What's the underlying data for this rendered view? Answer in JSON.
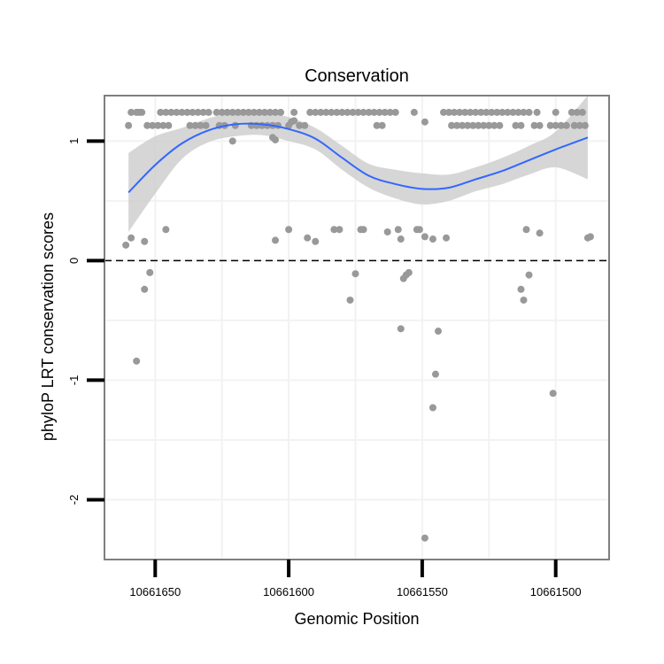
{
  "chart_data": {
    "type": "scatter",
    "title": "Conservation",
    "xlabel": "Genomic Position",
    "ylabel": "phyloP LRT conservation scores",
    "x_reversed": true,
    "xlim": [
      10661669,
      10661480
    ],
    "ylim": [
      -2.5,
      1.38
    ],
    "x_ticks": [
      10661650,
      10661600,
      10661550,
      10661500
    ],
    "x_tick_labels": [
      "10661650",
      "10661600",
      "10661550",
      "10661500"
    ],
    "y_ticks": [
      -2,
      -1,
      0,
      1
    ],
    "y_tick_labels": [
      "-2",
      "-1",
      "0",
      "1"
    ],
    "reference_line": {
      "y": 0,
      "style": "dashed"
    },
    "grid": true,
    "colors": {
      "points": "#999999",
      "smooth_line": "#3366FF",
      "ribbon": "#CCCCCC",
      "panel_border": "#7F7F7F",
      "grid": "#F2F2F2"
    },
    "points": [
      {
        "x": 10661659,
        "y": 1.24
      },
      {
        "x": 10661657,
        "y": 1.24
      },
      {
        "x": 10661656,
        "y": 1.24
      },
      {
        "x": 10661655,
        "y": 1.24
      },
      {
        "x": 10661648,
        "y": 1.24
      },
      {
        "x": 10661646,
        "y": 1.24
      },
      {
        "x": 10661644,
        "y": 1.24
      },
      {
        "x": 10661642,
        "y": 1.24
      },
      {
        "x": 10661640,
        "y": 1.24
      },
      {
        "x": 10661638,
        "y": 1.24
      },
      {
        "x": 10661636,
        "y": 1.24
      },
      {
        "x": 10661634,
        "y": 1.24
      },
      {
        "x": 10661632,
        "y": 1.24
      },
      {
        "x": 10661630,
        "y": 1.24
      },
      {
        "x": 10661627,
        "y": 1.24
      },
      {
        "x": 10661625,
        "y": 1.24
      },
      {
        "x": 10661623,
        "y": 1.24
      },
      {
        "x": 10661621,
        "y": 1.24
      },
      {
        "x": 10661619,
        "y": 1.24
      },
      {
        "x": 10661617,
        "y": 1.24
      },
      {
        "x": 10661615,
        "y": 1.24
      },
      {
        "x": 10661613,
        "y": 1.24
      },
      {
        "x": 10661611,
        "y": 1.24
      },
      {
        "x": 10661609,
        "y": 1.24
      },
      {
        "x": 10661607,
        "y": 1.24
      },
      {
        "x": 10661605,
        "y": 1.24
      },
      {
        "x": 10661603,
        "y": 1.24
      },
      {
        "x": 10661598,
        "y": 1.24
      },
      {
        "x": 10661592,
        "y": 1.24
      },
      {
        "x": 10661590,
        "y": 1.24
      },
      {
        "x": 10661588,
        "y": 1.24
      },
      {
        "x": 10661586,
        "y": 1.24
      },
      {
        "x": 10661584,
        "y": 1.24
      },
      {
        "x": 10661582,
        "y": 1.24
      },
      {
        "x": 10661580,
        "y": 1.24
      },
      {
        "x": 10661578,
        "y": 1.24
      },
      {
        "x": 10661576,
        "y": 1.24
      },
      {
        "x": 10661574,
        "y": 1.24
      },
      {
        "x": 10661572,
        "y": 1.24
      },
      {
        "x": 10661570,
        "y": 1.24
      },
      {
        "x": 10661568,
        "y": 1.24
      },
      {
        "x": 10661566,
        "y": 1.24
      },
      {
        "x": 10661564,
        "y": 1.24
      },
      {
        "x": 10661562,
        "y": 1.24
      },
      {
        "x": 10661560,
        "y": 1.24
      },
      {
        "x": 10661553,
        "y": 1.24
      },
      {
        "x": 10661542,
        "y": 1.24
      },
      {
        "x": 10661540,
        "y": 1.24
      },
      {
        "x": 10661538,
        "y": 1.24
      },
      {
        "x": 10661536,
        "y": 1.24
      },
      {
        "x": 10661534,
        "y": 1.24
      },
      {
        "x": 10661532,
        "y": 1.24
      },
      {
        "x": 10661530,
        "y": 1.24
      },
      {
        "x": 10661528,
        "y": 1.24
      },
      {
        "x": 10661526,
        "y": 1.24
      },
      {
        "x": 10661524,
        "y": 1.24
      },
      {
        "x": 10661522,
        "y": 1.24
      },
      {
        "x": 10661520,
        "y": 1.24
      },
      {
        "x": 10661518,
        "y": 1.24
      },
      {
        "x": 10661516,
        "y": 1.24
      },
      {
        "x": 10661514,
        "y": 1.24
      },
      {
        "x": 10661512,
        "y": 1.24
      },
      {
        "x": 10661510,
        "y": 1.24
      },
      {
        "x": 10661507,
        "y": 1.24
      },
      {
        "x": 10661500,
        "y": 1.24
      },
      {
        "x": 10661494,
        "y": 1.24
      },
      {
        "x": 10661492,
        "y": 1.24
      },
      {
        "x": 10661490,
        "y": 1.24
      },
      {
        "x": 10661660,
        "y": 1.13
      },
      {
        "x": 10661653,
        "y": 1.13
      },
      {
        "x": 10661651,
        "y": 1.13
      },
      {
        "x": 10661649,
        "y": 1.13
      },
      {
        "x": 10661647,
        "y": 1.13
      },
      {
        "x": 10661645,
        "y": 1.13
      },
      {
        "x": 10661637,
        "y": 1.13
      },
      {
        "x": 10661635,
        "y": 1.13
      },
      {
        "x": 10661633,
        "y": 1.13
      },
      {
        "x": 10661631,
        "y": 1.13
      },
      {
        "x": 10661626,
        "y": 1.13
      },
      {
        "x": 10661624,
        "y": 1.13
      },
      {
        "x": 10661620,
        "y": 1.13
      },
      {
        "x": 10661614,
        "y": 1.13
      },
      {
        "x": 10661612,
        "y": 1.13
      },
      {
        "x": 10661610,
        "y": 1.13
      },
      {
        "x": 10661608,
        "y": 1.13
      },
      {
        "x": 10661606,
        "y": 1.13
      },
      {
        "x": 10661604,
        "y": 1.13
      },
      {
        "x": 10661600,
        "y": 1.13
      },
      {
        "x": 10661596,
        "y": 1.13
      },
      {
        "x": 10661594,
        "y": 1.13
      },
      {
        "x": 10661567,
        "y": 1.13
      },
      {
        "x": 10661565,
        "y": 1.13
      },
      {
        "x": 10661549,
        "y": 1.16
      },
      {
        "x": 10661539,
        "y": 1.13
      },
      {
        "x": 10661537,
        "y": 1.13
      },
      {
        "x": 10661535,
        "y": 1.13
      },
      {
        "x": 10661533,
        "y": 1.13
      },
      {
        "x": 10661531,
        "y": 1.13
      },
      {
        "x": 10661529,
        "y": 1.13
      },
      {
        "x": 10661527,
        "y": 1.13
      },
      {
        "x": 10661525,
        "y": 1.13
      },
      {
        "x": 10661523,
        "y": 1.13
      },
      {
        "x": 10661521,
        "y": 1.13
      },
      {
        "x": 10661515,
        "y": 1.13
      },
      {
        "x": 10661513,
        "y": 1.13
      },
      {
        "x": 10661508,
        "y": 1.13
      },
      {
        "x": 10661506,
        "y": 1.13
      },
      {
        "x": 10661502,
        "y": 1.13
      },
      {
        "x": 10661500,
        "y": 1.13
      },
      {
        "x": 10661498,
        "y": 1.13
      },
      {
        "x": 10661496,
        "y": 1.13
      },
      {
        "x": 10661493,
        "y": 1.13
      },
      {
        "x": 10661491,
        "y": 1.13
      },
      {
        "x": 10661489,
        "y": 1.13
      },
      {
        "x": 10661599,
        "y": 1.16
      },
      {
        "x": 10661598,
        "y": 1.17
      },
      {
        "x": 10661606,
        "y": 1.03
      },
      {
        "x": 10661605,
        "y": 1.01
      },
      {
        "x": 10661621,
        "y": 1.0
      },
      {
        "x": 10661661,
        "y": 0.13
      },
      {
        "x": 10661659,
        "y": 0.19
      },
      {
        "x": 10661654,
        "y": 0.16
      },
      {
        "x": 10661646,
        "y": 0.26
      },
      {
        "x": 10661605,
        "y": 0.17
      },
      {
        "x": 10661600,
        "y": 0.26
      },
      {
        "x": 10661593,
        "y": 0.19
      },
      {
        "x": 10661590,
        "y": 0.16
      },
      {
        "x": 10661583,
        "y": 0.26
      },
      {
        "x": 10661581,
        "y": 0.26
      },
      {
        "x": 10661573,
        "y": 0.26
      },
      {
        "x": 10661572,
        "y": 0.26
      },
      {
        "x": 10661563,
        "y": 0.24
      },
      {
        "x": 10661559,
        "y": 0.26
      },
      {
        "x": 10661558,
        "y": 0.18
      },
      {
        "x": 10661552,
        "y": 0.26
      },
      {
        "x": 10661551,
        "y": 0.26
      },
      {
        "x": 10661549,
        "y": 0.2
      },
      {
        "x": 10661546,
        "y": 0.18
      },
      {
        "x": 10661541,
        "y": 0.19
      },
      {
        "x": 10661511,
        "y": 0.26
      },
      {
        "x": 10661506,
        "y": 0.23
      },
      {
        "x": 10661488,
        "y": 0.19
      },
      {
        "x": 10661487,
        "y": 0.2
      },
      {
        "x": 10661652,
        "y": -0.1
      },
      {
        "x": 10661654,
        "y": -0.24
      },
      {
        "x": 10661657,
        "y": -0.84
      },
      {
        "x": 10661575,
        "y": -0.11
      },
      {
        "x": 10661577,
        "y": -0.33
      },
      {
        "x": 10661557,
        "y": -0.15
      },
      {
        "x": 10661556,
        "y": -0.12
      },
      {
        "x": 10661555,
        "y": -0.1
      },
      {
        "x": 10661558,
        "y": -0.57
      },
      {
        "x": 10661544,
        "y": -0.59
      },
      {
        "x": 10661545,
        "y": -0.95
      },
      {
        "x": 10661546,
        "y": -1.23
      },
      {
        "x": 10661549,
        "y": -2.32
      },
      {
        "x": 10661513,
        "y": -0.24
      },
      {
        "x": 10661512,
        "y": -0.33
      },
      {
        "x": 10661510,
        "y": -0.12
      },
      {
        "x": 10661501,
        "y": -1.11
      }
    ],
    "smooth": {
      "x": [
        10661660,
        10661650,
        10661640,
        10661630,
        10661620,
        10661610,
        10661600,
        10661590,
        10661580,
        10661570,
        10661560,
        10661550,
        10661540,
        10661530,
        10661520,
        10661510,
        10661500,
        10661488
      ],
      "y": [
        0.57,
        0.8,
        0.98,
        1.09,
        1.14,
        1.14,
        1.1,
        1.02,
        0.86,
        0.71,
        0.64,
        0.6,
        0.61,
        0.68,
        0.75,
        0.84,
        0.93,
        1.03
      ],
      "lower": [
        0.24,
        0.56,
        0.85,
        0.99,
        1.04,
        1.05,
        1.0,
        0.93,
        0.76,
        0.61,
        0.52,
        0.47,
        0.5,
        0.58,
        0.64,
        0.72,
        0.78,
        0.68
      ],
      "upper": [
        0.9,
        1.04,
        1.11,
        1.19,
        1.24,
        1.24,
        1.2,
        1.11,
        0.96,
        0.81,
        0.76,
        0.73,
        0.72,
        0.78,
        0.86,
        0.96,
        1.08,
        1.38
      ]
    }
  }
}
